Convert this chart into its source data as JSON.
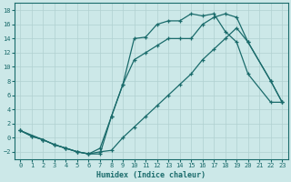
{
  "xlabel": "Humidex (Indice chaleur)",
  "bg_color": "#cce8e8",
  "grid_color": "#b0d0d0",
  "line_color": "#1a6b6b",
  "xlim": [
    -0.5,
    23.5
  ],
  "ylim": [
    -3,
    19
  ],
  "curve1_x": [
    0,
    1,
    2,
    3,
    4,
    5,
    6,
    7,
    8,
    9,
    10,
    11,
    12,
    13,
    14,
    15,
    16,
    17,
    18,
    19,
    20,
    22,
    23
  ],
  "curve1_y": [
    1.0,
    0.2,
    -0.3,
    -1.0,
    -1.5,
    -2.0,
    -2.3,
    -1.5,
    3.0,
    7.5,
    14.0,
    14.2,
    16.0,
    16.5,
    16.5,
    17.5,
    17.2,
    17.5,
    15.0,
    13.5,
    9.0,
    5.0,
    5.0
  ],
  "curve2_x": [
    0,
    1,
    2,
    3,
    4,
    5,
    6,
    7,
    8,
    9,
    10,
    11,
    12,
    13,
    14,
    15,
    16,
    17,
    18,
    19,
    20,
    22,
    23
  ],
  "curve2_y": [
    1.0,
    0.2,
    -0.3,
    -1.0,
    -1.5,
    -2.0,
    -2.3,
    -2.0,
    -1.8,
    0.0,
    1.5,
    3.0,
    4.5,
    6.0,
    7.5,
    9.0,
    11.0,
    12.5,
    14.0,
    15.5,
    13.5,
    8.0,
    5.0
  ],
  "curve3_x": [
    0,
    2,
    3,
    4,
    5,
    6,
    7,
    8,
    9,
    10,
    11,
    12,
    13,
    14,
    15,
    16,
    17,
    18,
    19,
    20,
    22,
    23
  ],
  "curve3_y": [
    1.0,
    -0.3,
    -1.0,
    -1.5,
    -2.0,
    -2.3,
    -2.3,
    3.0,
    7.5,
    11.0,
    12.0,
    13.0,
    14.0,
    14.0,
    14.0,
    16.0,
    17.0,
    17.5,
    17.0,
    13.5,
    8.0,
    5.0
  ]
}
